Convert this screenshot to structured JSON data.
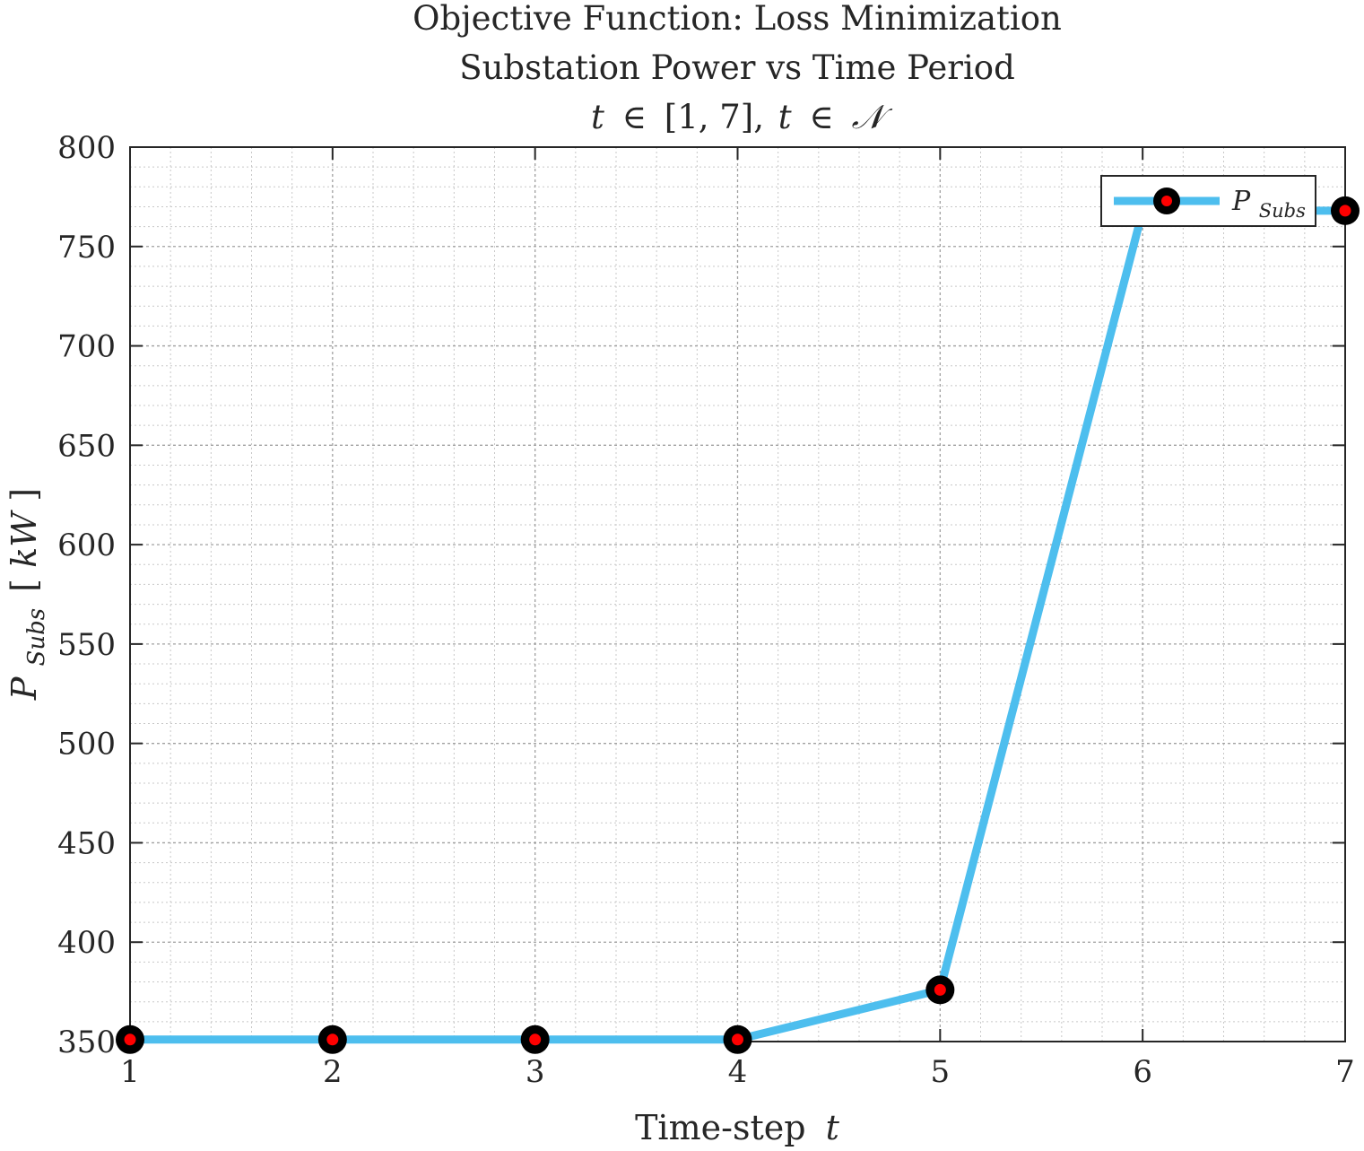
{
  "chart_data": {
    "type": "line",
    "title_lines": [
      "Objective Function: Loss Minimization",
      "Substation Power vs Time Period"
    ],
    "title_math": {
      "var": "t",
      "in1": "∈",
      "interval": "[1, 7],",
      "var2": "t",
      "in2": "∈",
      "set": "𝒩"
    },
    "xlabel": {
      "text": "Time-step",
      "var": "t"
    },
    "ylabel": {
      "symbol": "P",
      "subscript": "Subs",
      "unit_open": "[",
      "unit": "kW",
      "unit_close": "]"
    },
    "x": [
      1,
      2,
      3,
      4,
      5,
      6,
      7
    ],
    "series": [
      {
        "name": "P_Subs",
        "legend_symbol": "P",
        "legend_subscript": "Subs",
        "values": [
          351,
          351,
          351,
          351,
          376,
          768,
          768
        ],
        "line_color": "#4DBEEE",
        "marker_edge_color": "#000000",
        "marker_face_color": "#FF0000"
      }
    ],
    "xlim": [
      1,
      7
    ],
    "ylim": [
      350,
      800
    ],
    "xticks": [
      1,
      2,
      3,
      4,
      5,
      6,
      7
    ],
    "yticks": [
      350,
      400,
      450,
      500,
      550,
      600,
      650,
      700,
      750,
      800
    ],
    "grid": true,
    "minor_grid": true,
    "legend_position": "top-right"
  }
}
